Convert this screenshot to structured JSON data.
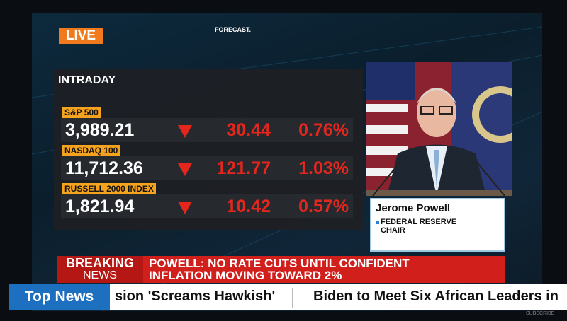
{
  "live": "LIVE",
  "brand": "FORECAST.",
  "intraday": {
    "title": "INTRADAY",
    "rows": [
      {
        "name": "S&P 500",
        "price": "3,989.21",
        "change": "30.44",
        "pct": "0.76%"
      },
      {
        "name": "NASDAQ 100",
        "price": "11,712.36",
        "change": "121.77",
        "pct": "1.03%"
      },
      {
        "name": "RUSSELL 2000 INDEX",
        "price": "1,821.94",
        "change": "10.42",
        "pct": "0.57%"
      }
    ]
  },
  "speaker": {
    "name": "Jerome Powell",
    "role": "FEDERAL RESERVE CHAIR"
  },
  "breaking": {
    "label1": "BREAKING",
    "label2": "NEWS",
    "headline": "POWELL: NO RATE CUTS UNTIL CONFIDENT INFLATION MOVING TOWARD 2%"
  },
  "ticker": {
    "label": "Top News",
    "items": [
      "sion 'Screams Hawkish'",
      "Biden to Meet Six African Leaders in"
    ],
    "subscribe": "SUBSCRIBE"
  }
}
